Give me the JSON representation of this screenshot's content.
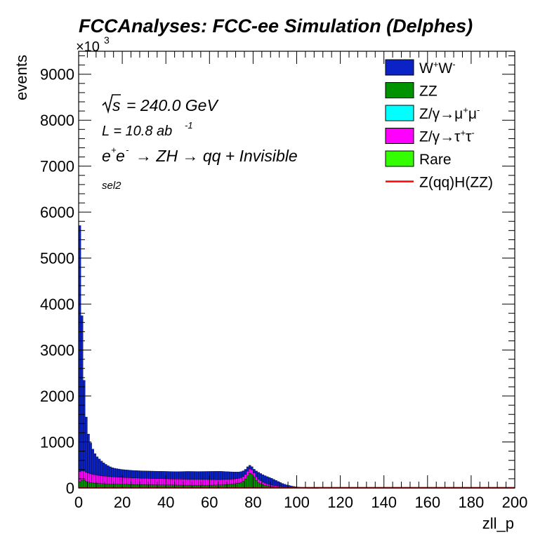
{
  "title": "FCCAnalyses: FCC-ee Simulation (Delphes)",
  "annotations": {
    "sqrt_s": "= 240.0 GeV",
    "lumi_prefix": "L = 10.8 ab",
    "lumi_exp": "-1",
    "process_a": "e",
    "process_b": "e",
    "process_c": "→ ZH → qq + Invisible",
    "selection": "sel2"
  },
  "exponent_label": "×10",
  "exponent_power": "3",
  "colors": {
    "ww": "#0b23c6",
    "zz": "#009300",
    "mumu": "#00ffff",
    "tautau": "#ff00ff",
    "rare": "#33ff00",
    "signal": "#ff0000"
  },
  "chart_data": {
    "type": "bar",
    "stacked": true,
    "xlabel": "zll_p",
    "ylabel": "events",
    "xlim": [
      0,
      200
    ],
    "ylim": [
      0,
      9500
    ],
    "y_multiplier": 1000,
    "xticks": [
      0,
      20,
      40,
      60,
      80,
      100,
      120,
      140,
      160,
      180,
      200
    ],
    "yticks": [
      0,
      1000,
      2000,
      3000,
      4000,
      5000,
      6000,
      7000,
      8000,
      9000
    ],
    "bin_width": 1,
    "legend_position": "top-right",
    "legend": [
      {
        "key": "ww",
        "label": "W",
        "sup1": "+",
        "mid": "W",
        "sup2": "-",
        "style": "fill"
      },
      {
        "key": "zz",
        "label": "ZZ",
        "style": "fill"
      },
      {
        "key": "mumu",
        "label": "Z/γ→μ",
        "sup1": "+",
        "mid": "μ",
        "sup2": "-",
        "style": "fill"
      },
      {
        "key": "tautau",
        "label": "Z/γ→τ",
        "sup1": "+",
        "mid": "τ",
        "sup2": "-",
        "style": "fill"
      },
      {
        "key": "rare",
        "label": "Rare",
        "style": "fill"
      },
      {
        "key": "signal",
        "label": "Z(qq)H(ZZ)",
        "style": "line"
      }
    ],
    "stack_order": [
      "zz",
      "mumu",
      "tautau",
      "ww"
    ],
    "series": [
      {
        "name": "ZZ",
        "key": "zz",
        "points": [
          [
            0,
            120
          ],
          [
            2,
            180
          ],
          [
            4,
            130
          ],
          [
            6,
            110
          ],
          [
            10,
            95
          ],
          [
            15,
            85
          ],
          [
            20,
            80
          ],
          [
            30,
            70
          ],
          [
            40,
            65
          ],
          [
            50,
            60
          ],
          [
            60,
            60
          ],
          [
            65,
            65
          ],
          [
            70,
            80
          ],
          [
            74,
            110
          ],
          [
            76,
            160
          ],
          [
            77,
            230
          ],
          [
            78,
            300
          ],
          [
            79,
            330
          ],
          [
            80,
            280
          ],
          [
            81,
            200
          ],
          [
            82,
            130
          ],
          [
            84,
            80
          ],
          [
            86,
            50
          ],
          [
            88,
            35
          ],
          [
            90,
            30
          ],
          [
            92,
            20
          ],
          [
            95,
            12
          ],
          [
            100,
            5
          ],
          [
            105,
            1
          ],
          [
            110,
            0
          ],
          [
            200,
            0
          ]
        ]
      },
      {
        "name": "Z/γ→μ+μ-",
        "key": "mumu",
        "points": [
          [
            0,
            0
          ],
          [
            200,
            0
          ]
        ]
      },
      {
        "name": "Z/γ→τ+τ-",
        "key": "tautau",
        "points": [
          [
            0,
            230
          ],
          [
            2,
            200
          ],
          [
            4,
            200
          ],
          [
            6,
            190
          ],
          [
            8,
            180
          ],
          [
            10,
            170
          ],
          [
            15,
            160
          ],
          [
            20,
            150
          ],
          [
            30,
            140
          ],
          [
            40,
            135
          ],
          [
            50,
            130
          ],
          [
            60,
            125
          ],
          [
            70,
            110
          ],
          [
            75,
            100
          ],
          [
            78,
            100
          ],
          [
            80,
            90
          ],
          [
            82,
            75
          ],
          [
            84,
            60
          ],
          [
            86,
            45
          ],
          [
            88,
            35
          ],
          [
            90,
            25
          ],
          [
            92,
            18
          ],
          [
            95,
            10
          ],
          [
            100,
            4
          ],
          [
            105,
            1
          ],
          [
            110,
            0
          ],
          [
            200,
            0
          ]
        ]
      },
      {
        "name": "W+W-",
        "key": "ww",
        "points": [
          [
            0,
            6450
          ],
          [
            1,
            4250
          ],
          [
            2,
            2500
          ],
          [
            3,
            1450
          ],
          [
            4,
            950
          ],
          [
            5,
            750
          ],
          [
            6,
            600
          ],
          [
            7,
            500
          ],
          [
            8,
            420
          ],
          [
            9,
            380
          ],
          [
            10,
            340
          ],
          [
            12,
            270
          ],
          [
            14,
            220
          ],
          [
            16,
            190
          ],
          [
            18,
            180
          ],
          [
            20,
            170
          ],
          [
            25,
            160
          ],
          [
            30,
            160
          ],
          [
            35,
            160
          ],
          [
            40,
            160
          ],
          [
            45,
            160
          ],
          [
            50,
            170
          ],
          [
            55,
            170
          ],
          [
            60,
            175
          ],
          [
            65,
            180
          ],
          [
            70,
            160
          ],
          [
            73,
            140
          ],
          [
            75,
            130
          ],
          [
            76,
            120
          ],
          [
            77,
            100
          ],
          [
            78,
            90
          ],
          [
            79,
            70
          ],
          [
            80,
            60
          ],
          [
            81,
            100
          ],
          [
            82,
            150
          ],
          [
            84,
            160
          ],
          [
            86,
            160
          ],
          [
            88,
            150
          ],
          [
            90,
            120
          ],
          [
            92,
            90
          ],
          [
            94,
            60
          ],
          [
            96,
            40
          ],
          [
            98,
            25
          ],
          [
            100,
            15
          ],
          [
            102,
            8
          ],
          [
            105,
            4
          ],
          [
            110,
            2
          ],
          [
            120,
            1
          ],
          [
            200,
            0
          ]
        ]
      },
      {
        "name": "Rare",
        "key": "rare",
        "points": [
          [
            0,
            0
          ],
          [
            200,
            0
          ]
        ]
      },
      {
        "name": "Z(qq)H(ZZ)",
        "key": "signal",
        "points": [
          [
            0,
            5
          ],
          [
            100,
            5
          ],
          [
            200,
            5
          ]
        ]
      }
    ]
  }
}
